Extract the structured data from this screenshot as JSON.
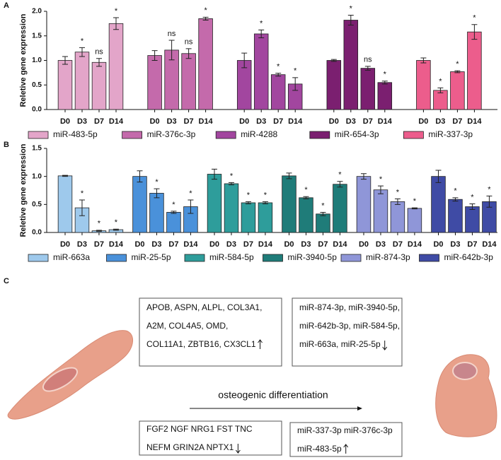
{
  "chart_data": [
    {
      "type": "bar",
      "panel": "A",
      "y_label": "Reletive gene expression",
      "categories": [
        "D0",
        "D3",
        "D7",
        "D14"
      ],
      "ylim": [
        0,
        2.0
      ],
      "yticks": [
        {
          "value": 0,
          "label": "0.0"
        },
        0.5,
        {
          "value": 1,
          "label": "1.0"
        },
        1.5,
        {
          "value": 2,
          "label": "2.0"
        }
      ],
      "legend": "bottom",
      "series": [
        {
          "name": "miR-483-5p",
          "color": "#e3a5c9",
          "values": [
            1.0,
            1.17,
            0.96,
            1.75
          ],
          "errors": [
            0.08,
            0.09,
            0.08,
            0.12
          ],
          "annotations": [
            null,
            "*",
            "ns",
            "*"
          ]
        },
        {
          "name": "miR-376c-3p",
          "color": "#c46aab",
          "values": [
            1.1,
            1.21,
            1.14,
            1.85
          ],
          "errors": [
            0.1,
            0.2,
            0.1,
            0.03
          ],
          "annotations": [
            null,
            "ns",
            "ns",
            "*"
          ]
        },
        {
          "name": "miR-4288",
          "color": "#a2469f",
          "values": [
            1.0,
            1.54,
            0.71,
            0.52
          ],
          "errors": [
            0.15,
            0.08,
            0.03,
            0.13
          ],
          "annotations": [
            null,
            "*",
            "*",
            "*"
          ]
        },
        {
          "name": "miR-654-3p",
          "color": "#7b1f70",
          "values": [
            1.0,
            1.82,
            0.84,
            0.55
          ],
          "errors": [
            0.02,
            0.1,
            0.04,
            0.03
          ],
          "annotations": [
            null,
            "*",
            "ns",
            "*"
          ]
        },
        {
          "name": "miR-337-3p",
          "color": "#ec5d8c",
          "values": [
            1.0,
            0.39,
            0.77,
            1.58
          ],
          "errors": [
            0.05,
            0.05,
            0.02,
            0.15
          ],
          "annotations": [
            null,
            "*",
            "*",
            "*"
          ]
        }
      ]
    },
    {
      "type": "bar",
      "panel": "B",
      "y_label": "Reletive gene expression",
      "categories": [
        "D0",
        "D3",
        "D7",
        "D14"
      ],
      "ylim": [
        0,
        1.5
      ],
      "yticks": [
        {
          "value": 0,
          "label": "0.0"
        },
        0.5,
        {
          "value": 1,
          "label": "1.0"
        },
        1.5
      ],
      "legend": "bottom",
      "series": [
        {
          "name": "miR-663a",
          "color": "#9ec9ec",
          "values": [
            1.01,
            0.44,
            0.03,
            0.05
          ],
          "errors": [
            0.01,
            0.14,
            0.01,
            0.01
          ],
          "annotations": [
            null,
            "*",
            "*",
            "*"
          ]
        },
        {
          "name": "miR-25-5p",
          "color": "#4a91da",
          "values": [
            1.0,
            0.7,
            0.36,
            0.46
          ],
          "errors": [
            0.1,
            0.08,
            0.02,
            0.12
          ],
          "annotations": [
            null,
            "*",
            "*",
            "*"
          ]
        },
        {
          "name": "miR-584-5p",
          "color": "#2e9d9b",
          "values": [
            1.04,
            0.87,
            0.53,
            0.53
          ],
          "errors": [
            0.09,
            0.02,
            0.02,
            0.02
          ],
          "annotations": [
            null,
            "*",
            "*",
            "*"
          ]
        },
        {
          "name": "miR-3940-5p",
          "color": "#1f7c79",
          "values": [
            1.01,
            0.62,
            0.33,
            0.86
          ],
          "errors": [
            0.05,
            0.02,
            0.03,
            0.05
          ],
          "annotations": [
            null,
            "*",
            "*",
            "*"
          ]
        },
        {
          "name": "miR-874-3p",
          "color": "#8f96d8",
          "values": [
            1.0,
            0.76,
            0.55,
            0.43
          ],
          "errors": [
            0.05,
            0.07,
            0.05,
            0.01
          ],
          "annotations": [
            null,
            "*",
            "*",
            "*"
          ]
        },
        {
          "name": "miR-642b-3p",
          "color": "#3f4ba5",
          "values": [
            1.0,
            0.59,
            0.46,
            0.55
          ],
          "errors": [
            0.11,
            0.03,
            0.05,
            0.1
          ],
          "annotations": [
            null,
            "*",
            "*",
            "*"
          ]
        }
      ]
    }
  ],
  "diagram": {
    "panel": "C",
    "center_label": "osteogenic differentiation",
    "boxes": [
      {
        "lines": [
          "APOB, ASPN, ALPL, COL3A1,",
          "A2M, COL4A5, OMD,",
          "COL11A1, ZBTB16, CX3CL1"
        ]
      },
      {
        "lines": [
          "miR-874-3p,  miR-3940-5p,",
          "miR-642b-3p, miR-584-5p,",
          "miR-663a, miR-25-5p"
        ]
      },
      {
        "lines": [
          "FGF2 NGF NRG1 FST TNC",
          "NEFM GRIN2A NPTX1"
        ]
      },
      {
        "lines": [
          "miR-337-3p miR-376c-3p",
          "miR-483-5p"
        ]
      }
    ]
  }
}
